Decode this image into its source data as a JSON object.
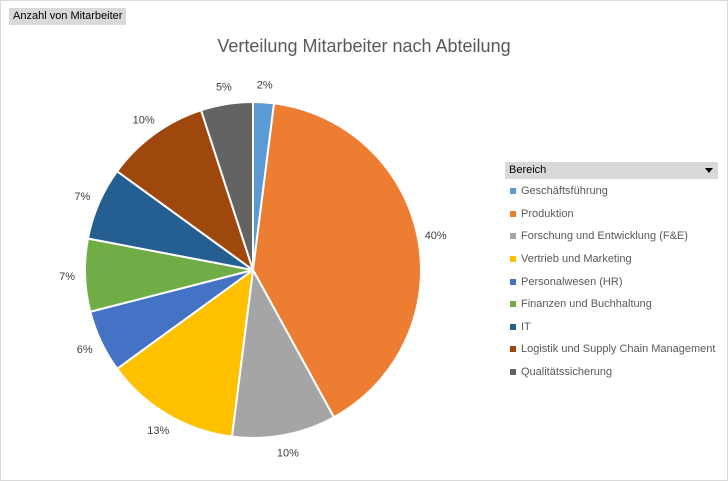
{
  "field_button": {
    "label": "Anzahl von Mitarbeiter"
  },
  "chart_data": {
    "type": "pie",
    "title": "Verteilung Mitarbeiter nach Abteilung",
    "legend_title": "Bereich",
    "legend_position": "right",
    "categories": [
      "Geschäftsführung",
      "Produktion",
      "Forschung und Entwicklung (F&E)",
      "Vertrieb und Marketing",
      "Personalwesen (HR)",
      "Finanzen und Buchhaltung",
      "IT",
      "Logistik und Supply Chain Management",
      "Qualitätssicherung"
    ],
    "values": [
      2,
      40,
      10,
      13,
      6,
      7,
      7,
      10,
      5
    ],
    "labels": [
      "2%",
      "40%",
      "10%",
      "13%",
      "6%",
      "7%",
      "7%",
      "10%",
      "5%"
    ],
    "colors": [
      "#5b9bd5",
      "#ed7d31",
      "#a5a5a5",
      "#ffc000",
      "#4472c4",
      "#70ad47",
      "#255e91",
      "#9e480e",
      "#636363"
    ]
  }
}
